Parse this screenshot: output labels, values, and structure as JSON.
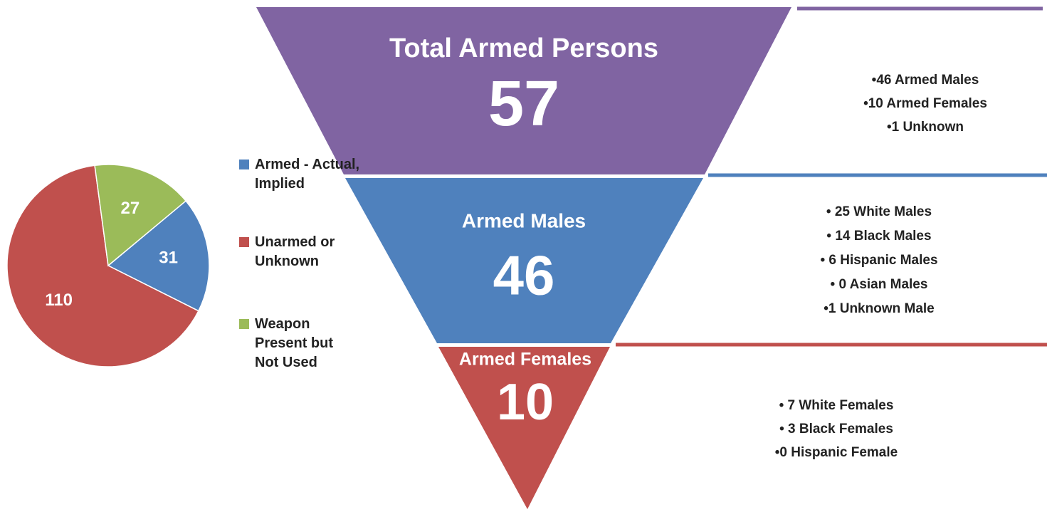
{
  "chart_data": {
    "type": "pie",
    "categories": [
      "Armed - Actual, Implied",
      "Unarmed or Unknown",
      "Weapon Present but Not Used"
    ],
    "values": [
      31,
      110,
      27
    ],
    "colors": [
      "#4f81bd",
      "#c0504d",
      "#9bbb59"
    ],
    "legend": "right"
  },
  "funnel": {
    "levels": [
      {
        "title": "Total Armed Persons",
        "value": 57,
        "color": "#8064a2",
        "bullets": [
          "•46 Armed Males",
          "•10 Armed Females",
          "•1 Unknown"
        ]
      },
      {
        "title": "Armed Males",
        "value": 46,
        "color": "#4f81bd",
        "bullets": [
          "• 25 White Males",
          "• 14 Black Males",
          "• 6 Hispanic Males",
          "• 0 Asian Males",
          "•1 Unknown Male"
        ]
      },
      {
        "title": "Armed Females",
        "value": 10,
        "color": "#c0504d",
        "bullets": [
          "• 7 White Females",
          "• 3 Black Females",
          "•0 Hispanic Female"
        ]
      }
    ]
  }
}
